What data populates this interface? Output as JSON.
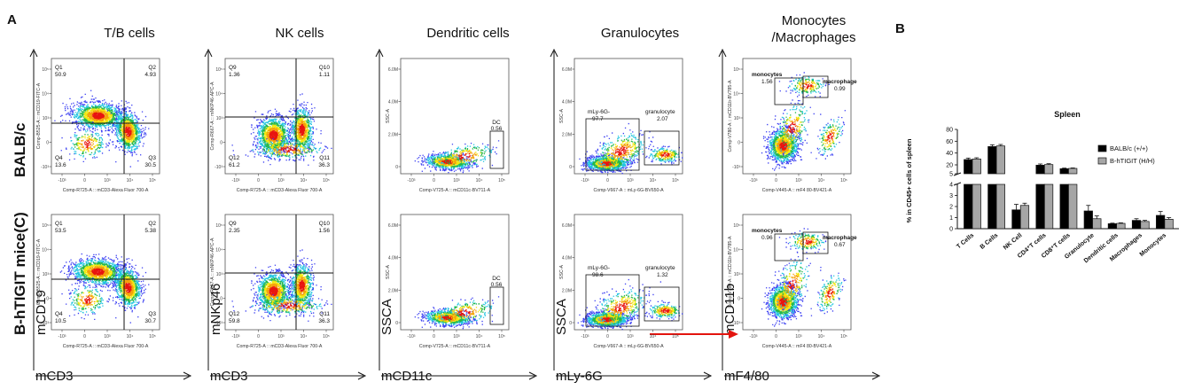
{
  "figure": {
    "panel_a_label": "A",
    "panel_b_label": "B",
    "columns": [
      {
        "title": "T/B cells",
        "x_marker": "mCD3",
        "y_marker": "mCD19"
      },
      {
        "title": "NK cells",
        "x_marker": "mCD3",
        "y_marker": "mNKp46"
      },
      {
        "title": "Dendritic cells",
        "x_marker": "mCD11c",
        "y_marker": "SSCA"
      },
      {
        "title": "Granulocytes",
        "x_marker": "mLy-6G",
        "y_marker": "SSCA"
      },
      {
        "title": "Monocytes\n/Macrophages",
        "x_marker": "mF4/80",
        "y_marker": "mCD11b"
      }
    ],
    "rows": [
      {
        "label": "BALB/c"
      },
      {
        "label": "B-hTIGIT mice(C)"
      }
    ],
    "plots": [
      {
        "row": 0,
        "col": 0,
        "type": "quad",
        "xaxis": "Comp-R725-A :: mCD3-Alexa Fluor 700-A",
        "yaxis": "Comp-B525-A :: mCD19-FITC-A",
        "gates": [
          {
            "name": "Q1",
            "value": "50.9"
          },
          {
            "name": "Q2",
            "value": "4.93"
          },
          {
            "name": "Q3",
            "value": "30.5"
          },
          {
            "name": "Q4",
            "value": "13.6"
          }
        ]
      },
      {
        "row": 0,
        "col": 1,
        "type": "quad",
        "xaxis": "Comp-R725-A :: mCD3-Alexa Fluor 700-A",
        "yaxis": "Comp-R667-A :: mNKP46-APC-A",
        "gates": [
          {
            "name": "Q9",
            "value": "1.36"
          },
          {
            "name": "Q10",
            "value": "1.11"
          },
          {
            "name": "Q11",
            "value": "36.3"
          },
          {
            "name": "Q12",
            "value": "61.2"
          }
        ]
      },
      {
        "row": 0,
        "col": 2,
        "type": "dc",
        "xaxis": "Comp-V725-A :: mCD11c-BV711-A",
        "yaxis": "SSC-A",
        "gates": [
          {
            "name": "DC",
            "value": "0.56"
          }
        ]
      },
      {
        "row": 0,
        "col": 3,
        "type": "gran",
        "xaxis": "Comp-V667-A :: mLy-6G-BV650-A",
        "yaxis": "SSC-A",
        "gates": [
          {
            "name": "mLy-6G-",
            "value": "97.7"
          },
          {
            "name": "granulocyte",
            "value": "2.07"
          }
        ]
      },
      {
        "row": 0,
        "col": 4,
        "type": "mono",
        "xaxis": "Comp-V445-A :: mF4 80-BV421-A",
        "yaxis": "Comp-V780-A :: mCD11b-BV785-A",
        "gates": [
          {
            "name": "monocytes",
            "value": "1.56"
          },
          {
            "name": "macrophage",
            "value": "0.99"
          }
        ]
      },
      {
        "row": 1,
        "col": 0,
        "type": "quad",
        "xaxis": "Comp-R725-A :: mCD3-Alexa Fluor 700-A",
        "yaxis": "Comp-B525-A :: mCD19-FITC-A",
        "gates": [
          {
            "name": "Q1",
            "value": "53.5"
          },
          {
            "name": "Q2",
            "value": "5.38"
          },
          {
            "name": "Q3",
            "value": "30.7"
          },
          {
            "name": "Q4",
            "value": "10.5"
          }
        ]
      },
      {
        "row": 1,
        "col": 1,
        "type": "quad",
        "xaxis": "Comp-R725-A :: mCD3-Alexa Fluor 700-A",
        "yaxis": "Comp-R667-A :: mNKP46-APC-A",
        "gates": [
          {
            "name": "Q9",
            "value": "2.35"
          },
          {
            "name": "Q10",
            "value": "1.56"
          },
          {
            "name": "Q11",
            "value": "36.3"
          },
          {
            "name": "Q12",
            "value": "59.8"
          }
        ]
      },
      {
        "row": 1,
        "col": 2,
        "type": "dc",
        "xaxis": "Comp-V725-A :: mCD11c-BV711-A",
        "yaxis": "SSC-A",
        "gates": [
          {
            "name": "DC",
            "value": "0.56"
          }
        ]
      },
      {
        "row": 1,
        "col": 3,
        "type": "gran",
        "xaxis": "Comp-V667-A :: mLy-6G-BV650-A",
        "yaxis": "SSC-A",
        "gates": [
          {
            "name": "mLy-6G-",
            "value": "98.6"
          },
          {
            "name": "granulocyte",
            "value": "1.32"
          }
        ]
      },
      {
        "row": 1,
        "col": 4,
        "type": "mono",
        "xaxis": "Comp-V445-A :: mF4 80-BV421-A",
        "yaxis": "Comp-V780-A :: mCD11b-BV785-A",
        "gates": [
          {
            "name": "monocytes",
            "value": "0.96"
          },
          {
            "name": "macrophage",
            "value": "0.67"
          }
        ]
      }
    ],
    "log_ticks_x": [
      "-10³",
      "0",
      "10³",
      "10⁴",
      "10⁵"
    ],
    "log_ticks_y": [
      "-10³",
      "0",
      "10³",
      "10⁴",
      "10⁵"
    ],
    "lin_ticks_y": [
      "0",
      "2.0M",
      "4.0M",
      "6.0M"
    ],
    "colors": {
      "red": "#e8140f",
      "orange": "#f5a10a",
      "yellow": "#f3e80c",
      "green": "#25b84a",
      "cyan": "#22c5e0",
      "blue": "#3b3ff2",
      "arrow": "#e3140e"
    }
  },
  "chart_data": {
    "type": "bar",
    "title": "Spleen",
    "ylabel": "% in CD45+ cells of spleen",
    "categories": [
      "T Cells",
      "B Cells",
      "NK Cell",
      "CD4⁺T cells",
      "CD8⁺T cells",
      "Granulocyte",
      "Dendritic cells",
      "Macrophages",
      "Monocytes"
    ],
    "series": [
      {
        "name": "BALB/c (+/+)",
        "color": "#000000",
        "values": [
          29,
          51,
          1.7,
          19.5,
          13.5,
          1.6,
          0.45,
          0.75,
          1.2
        ],
        "errors": [
          2.5,
          3,
          0.5,
          2,
          1,
          0.5,
          0.05,
          0.15,
          0.35
        ]
      },
      {
        "name": "B-hTIGIT (H/H)",
        "color": "#a6a6a6",
        "values": [
          30,
          52,
          2.1,
          20.5,
          14,
          0.9,
          0.48,
          0.65,
          0.85
        ],
        "errors": [
          2,
          2.5,
          0.2,
          1.5,
          0.8,
          0.25,
          0.05,
          0.1,
          0.15
        ]
      }
    ],
    "y_axis_segments": [
      {
        "range": [
          0,
          4
        ],
        "ticks": [
          "0",
          "1",
          "2",
          "3",
          "4"
        ]
      },
      {
        "range": [
          5,
          80
        ],
        "ticks": [
          "5",
          "20",
          "40",
          "60",
          "80"
        ]
      }
    ],
    "legend_position": "top-right"
  }
}
